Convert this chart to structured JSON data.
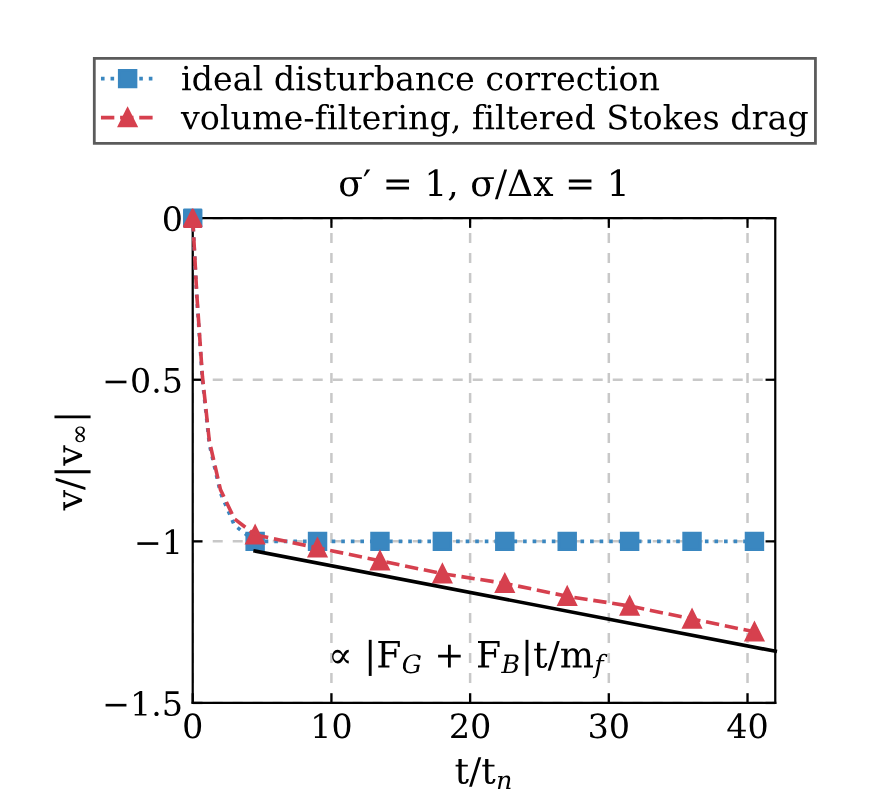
{
  "chart_data": {
    "type": "line",
    "title": "σ′ = 1, σ/Δx = 1",
    "xlabel": "t/t$_{n}$",
    "ylabel": "v/|v$_{∞}$|",
    "xlim": [
      0,
      42
    ],
    "ylim": [
      -1.5,
      0
    ],
    "xticks": [
      0,
      10,
      20,
      30,
      40
    ],
    "yticks": [
      -1.5,
      -1,
      -0.5,
      0
    ],
    "grid": true,
    "legend": "top",
    "series": [
      {
        "name": "ideal disturbance correction",
        "color": "#3a87c0",
        "marker": "square",
        "line_style": "dotted",
        "x": [
          4.5,
          9,
          13.5,
          18,
          22.5,
          27,
          31.5,
          36,
          40.5
        ],
        "values": [
          -1.0,
          -1.0,
          -1.0,
          -1.0,
          -1.0,
          -1.0,
          -1.0,
          -1.0,
          -1.0
        ]
      },
      {
        "color": "#3a87c0",
        "marker": "none",
        "line_style": "dotted",
        "x": [
          0,
          0.3,
          0.7,
          1.2,
          2,
          3,
          4.5
        ],
        "values": [
          0,
          -0.25,
          -0.5,
          -0.7,
          -0.85,
          -0.95,
          -1.0
        ]
      },
      {
        "name": "volume-filtering, filtered Stokes drag",
        "color": "#d6404e",
        "marker": "triangle",
        "line_style": "dashed",
        "x": [
          4.5,
          9,
          13.5,
          18,
          22.5,
          27,
          31.5,
          36,
          40.5
        ],
        "values": [
          -0.98,
          -1.02,
          -1.06,
          -1.1,
          -1.13,
          -1.17,
          -1.2,
          -1.24,
          -1.28
        ]
      },
      {
        "color": "#d6404e",
        "marker": "none",
        "line_style": "dashed",
        "x": [
          0,
          0.3,
          0.7,
          1.2,
          2,
          3,
          4.5
        ],
        "values": [
          0,
          -0.24,
          -0.49,
          -0.69,
          -0.84,
          -0.93,
          -0.98
        ]
      },
      {
        "type": "scatter",
        "color": "#3a87c0",
        "marker": "square",
        "x": [
          0
        ],
        "values": [
          0
        ]
      },
      {
        "type": "scatter",
        "color": "#d6404e",
        "marker": "triangle",
        "x": [
          0
        ],
        "values": [
          0
        ]
      },
      {
        "color": "#000000",
        "marker": "none",
        "line_style": "solid",
        "x": [
          4.5,
          42
        ],
        "values": [
          -1.03,
          -1.34
        ]
      }
    ],
    "annotations": [
      "∝ |F$_{G}$ + F$_{B}$|t/m$_{f}$"
    ]
  }
}
